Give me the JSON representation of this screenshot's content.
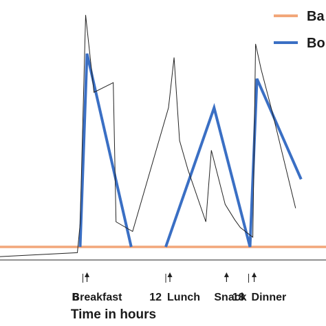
{
  "chart_data": {
    "type": "line",
    "xlabel": "Time in hours",
    "colors": {
      "basal": "#f2a77a",
      "bolus": "#3a6fc4",
      "glucose": "#222222",
      "axis": "#222222"
    },
    "legend": {
      "placement": "top-right",
      "entries": [
        {
          "label": "Ba",
          "color": "#f2a77a"
        },
        {
          "label": "Bo",
          "color": "#3a6fc4"
        }
      ]
    },
    "x_ticks": [
      {
        "value": 6,
        "label": "6"
      },
      {
        "value": 12,
        "label": "12"
      },
      {
        "value": 18,
        "label": "18"
      }
    ],
    "event_markers": [
      {
        "x": 6.3,
        "label": "Breakfast"
      },
      {
        "x": 12.3,
        "label": "Lunch"
      },
      {
        "x": 16.4,
        "label": "Snack"
      },
      {
        "x": 18.4,
        "label": "Dinner"
      }
    ],
    "series": [
      {
        "name": "Ba",
        "x": [
          0,
          23.6
        ],
        "y": [
          0,
          0
        ]
      },
      {
        "name": "Bo",
        "x": [
          5.8,
          6.3,
          9.5,
          11.4,
          12.0,
          15.5,
          18.1,
          18.6,
          21.8
        ],
        "y": [
          0,
          1.0,
          0,
          null,
          0,
          0.72,
          0,
          0.87,
          0.35
        ]
      },
      {
        "x": [
          0,
          5.6,
          5.8,
          6.2,
          6.8,
          8.2,
          8.4,
          9.6,
          12.2,
          12.6,
          13.0,
          13.6,
          14.9,
          15.3,
          16.3,
          17.0,
          17.4,
          18.3,
          18.5,
          18.9,
          19.7,
          21.4
        ],
        "y": [
          -0.05,
          -0.03,
          0.12,
          1.2,
          0.8,
          0.85,
          0.13,
          0.08,
          0.72,
          0.98,
          0.55,
          0.4,
          0.13,
          0.5,
          0.22,
          0.14,
          0.1,
          0.05,
          1.05,
          0.92,
          0.7,
          0.2
        ]
      }
    ],
    "xlim": [
      0,
      23.6
    ],
    "ylim": [
      -0.2,
      1.2
    ]
  }
}
